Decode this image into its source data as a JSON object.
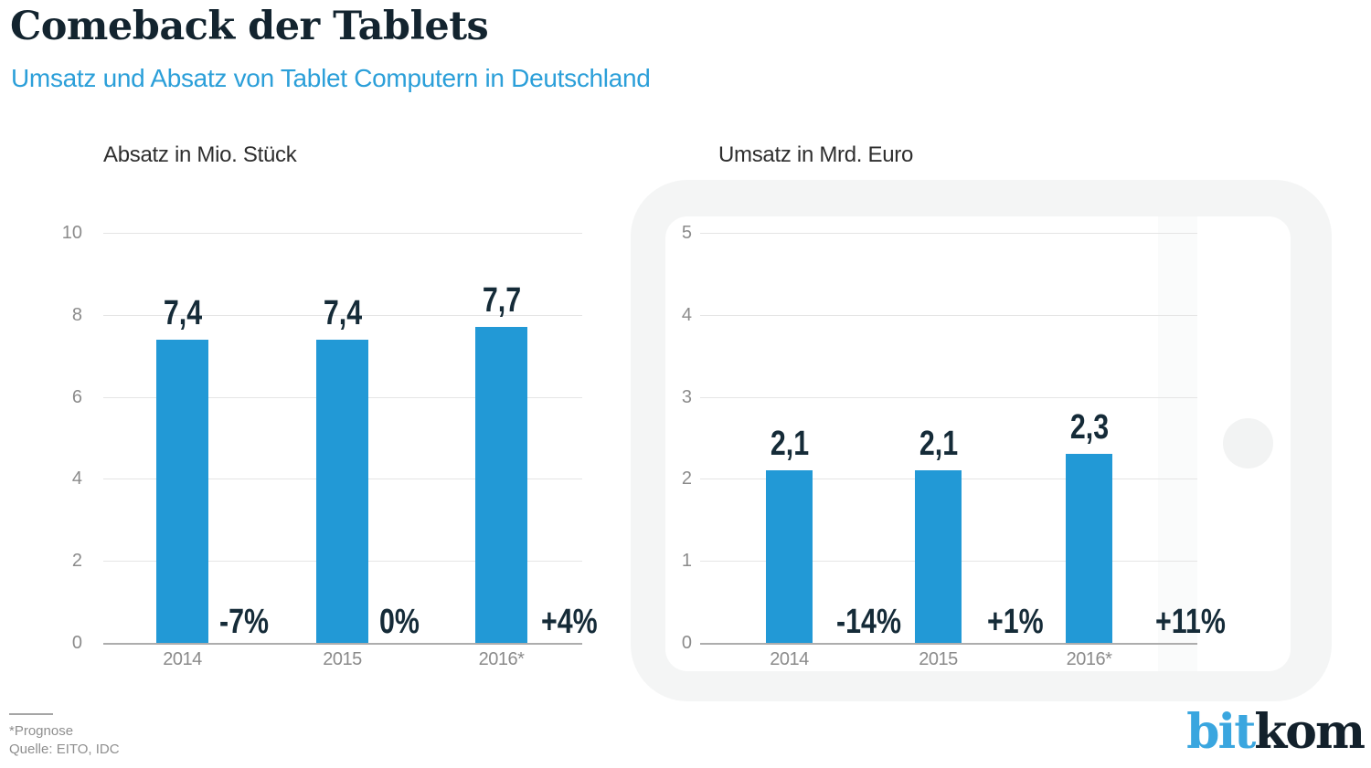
{
  "header": {
    "title": "Comeback der Tablets",
    "subtitle": "Umsatz und Absatz von Tablet Computern in Deutschland"
  },
  "chart_data": [
    {
      "type": "bar",
      "title": "Absatz in Mio. Stück",
      "categories": [
        "2014",
        "2015",
        "2016*"
      ],
      "values": [
        7.4,
        7.4,
        7.7
      ],
      "value_labels": [
        "7,4",
        "7,4",
        "7,7"
      ],
      "change_labels": [
        "-7%",
        "0%",
        "+4%"
      ],
      "y_ticks": [
        10,
        8,
        6,
        4,
        2,
        0
      ],
      "ylim": [
        0,
        10
      ],
      "grid": true,
      "legend": "none"
    },
    {
      "type": "bar",
      "title": "Umsatz in Mrd. Euro",
      "categories": [
        "2014",
        "2015",
        "2016*"
      ],
      "values": [
        2.1,
        2.1,
        2.3
      ],
      "value_labels": [
        "2,1",
        "2,1",
        "2,3"
      ],
      "change_labels": [
        "-14%",
        "+1%",
        "+11%"
      ],
      "y_ticks": [
        5,
        4,
        3,
        2,
        1,
        0
      ],
      "ylim": [
        0,
        5
      ],
      "grid": true,
      "legend": "none"
    }
  ],
  "footer": {
    "note": "*Prognose",
    "source": "Quelle: EITO, IDC"
  },
  "logo": {
    "part1": "bit",
    "part2": "kom"
  },
  "colors": {
    "bar": "#2299d6",
    "title_text": "#13242f",
    "subtitle_text": "#2b9fd9",
    "value_text": "#152b38",
    "tick_text": "#8b8b8b",
    "logo_blue": "#3aa6df",
    "logo_dark": "#13212c"
  }
}
